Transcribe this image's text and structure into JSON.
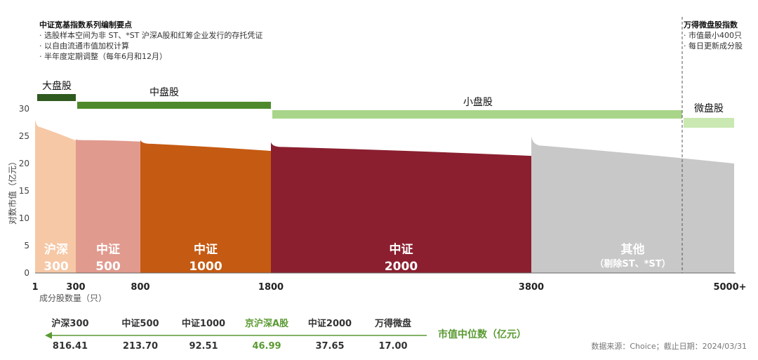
{
  "notes_left": {
    "title": "中证宽基指数系列编制要点",
    "lines": [
      "· 选股样本空间为非 ST、*ST 沪深A股和红筹企业发行的存托凭证",
      "· 以自由流通市值加权计算",
      "· 半年度定期调整（每年6月和12月）"
    ]
  },
  "notes_right": {
    "title": "万得微盘股指数",
    "lines": [
      "· 市值最小400只",
      "· 每日更新成分股"
    ]
  },
  "colors": {
    "large_bar": "#2f5a1f",
    "mid_bar": "#4e8a2c",
    "small_bar": "#a8d58a",
    "micro_bar": "#c9e8b2",
    "hs300": "#f6c8a6",
    "zz500": "#e19a8e",
    "zz1000": "#c55a12",
    "zz2000": "#8b1f2f",
    "other": "#c8c8c8",
    "accent_green": "#5a9a32"
  },
  "chart_data": {
    "type": "area",
    "xlabel": "成分股数量（只）",
    "ylabel": "对数市值（亿元）",
    "ylim": [
      0,
      30
    ],
    "yticks": [
      0,
      5,
      10,
      15,
      20,
      25,
      30
    ],
    "xticks": [
      "1",
      "300",
      "800",
      "1800",
      "3800",
      "5000+"
    ],
    "cap_bands": [
      {
        "label": "大盘股",
        "from": "1",
        "to": "300"
      },
      {
        "label": "中盘股",
        "from": "300",
        "to": "1800"
      },
      {
        "label": "小盘股",
        "from": "1800",
        "to": "5000"
      },
      {
        "label": "微盘股",
        "from": "5000",
        "to": "5000+"
      }
    ],
    "series": [
      {
        "name_lines": [
          "沪深",
          "300"
        ],
        "x_range": [
          "1",
          "300"
        ],
        "start_value": 28.0,
        "end_value": 24.2
      },
      {
        "name_lines": [
          "中证",
          "500"
        ],
        "x_range": [
          "300",
          "800"
        ],
        "start_value": 24.4,
        "end_value": 24.0
      },
      {
        "name_lines": [
          "中证",
          "1000"
        ],
        "x_range": [
          "800",
          "1800"
        ],
        "start_value": 24.3,
        "end_value": 22.3
      },
      {
        "name_lines": [
          "中证",
          "2000"
        ],
        "x_range": [
          "1800",
          "3800"
        ],
        "start_value": 23.9,
        "end_value": 21.4
      },
      {
        "name_lines": [
          "其他",
          "（剔除ST、*ST）"
        ],
        "x_range": [
          "3800",
          "5000+"
        ],
        "start_value": 25.0,
        "end_value": 20.0
      }
    ]
  },
  "median_table": {
    "title": "市值中位数（亿元）",
    "items": [
      {
        "name": "沪深300",
        "value": "816.41"
      },
      {
        "name": "中证500",
        "value": "213.70"
      },
      {
        "name": "中证1000",
        "value": "92.51"
      },
      {
        "name": "京沪深A股",
        "value": "46.99"
      },
      {
        "name": "中证2000",
        "value": "37.65"
      },
      {
        "name": "万得微盘",
        "value": "17.00"
      }
    ]
  },
  "source": "数据来源：Choice；截止日期：2024/03/31"
}
